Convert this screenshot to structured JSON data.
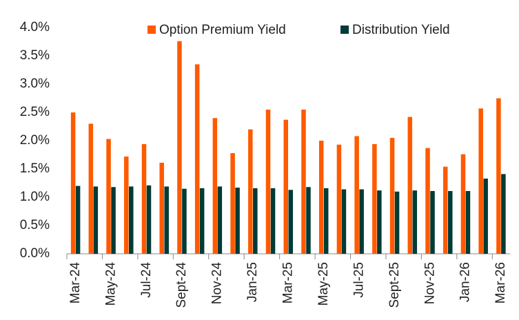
{
  "chart_data": {
    "type": "bar",
    "categories": [
      "Mar-24",
      null,
      "May-24",
      null,
      "Jul-24",
      null,
      "Sept-24",
      null,
      "Nov-24",
      null,
      "Jan-25",
      null,
      "Mar-25",
      null,
      "May-25",
      null,
      "Jul-25",
      null,
      "Sept-25",
      null,
      "Nov-25",
      null,
      "Jan-26",
      null,
      "Mar-26"
    ],
    "series": [
      {
        "name": "Option Premium Yield",
        "color": "#ff5a00",
        "values": [
          2.5,
          2.3,
          2.03,
          1.72,
          1.94,
          1.61,
          3.76,
          3.35,
          2.4,
          1.78,
          2.2,
          2.55,
          2.37,
          2.55,
          2.0,
          1.93,
          2.08,
          1.94,
          2.05,
          2.42,
          1.87,
          1.54,
          1.76,
          2.57,
          2.75
        ]
      },
      {
        "name": "Distribution Yield",
        "color": "#003b36",
        "values": [
          1.2,
          1.19,
          1.18,
          1.19,
          1.21,
          1.19,
          1.15,
          1.16,
          1.19,
          1.17,
          1.16,
          1.16,
          1.13,
          1.18,
          1.16,
          1.14,
          1.14,
          1.12,
          1.1,
          1.12,
          1.11,
          1.11,
          1.11,
          1.33,
          1.41
        ]
      }
    ],
    "ylim": [
      0,
      4
    ],
    "yticks": [
      {
        "value": 0,
        "label": "0.0%"
      },
      {
        "value": 0.5,
        "label": "0.5%"
      },
      {
        "value": 1,
        "label": "1.0%"
      },
      {
        "value": 1.5,
        "label": "1.5%"
      },
      {
        "value": 2,
        "label": "2.0%"
      },
      {
        "value": 2.5,
        "label": "2.5%"
      },
      {
        "value": 3,
        "label": "3.0%"
      },
      {
        "value": 3.5,
        "label": "3.5%"
      },
      {
        "value": 4,
        "label": "4.0%"
      }
    ],
    "grid": false,
    "legend": "top"
  }
}
